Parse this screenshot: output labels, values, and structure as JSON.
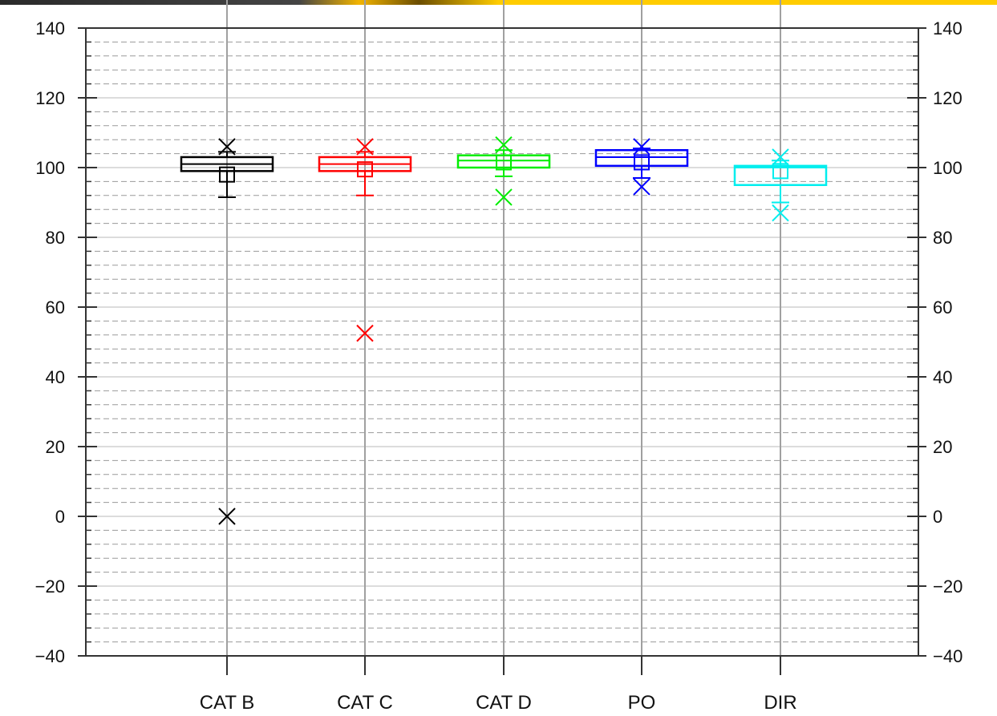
{
  "chart_data": {
    "type": "box",
    "y_axis": {
      "ylim": [
        -40,
        140
      ],
      "major_ticks": [
        -40,
        -20,
        0,
        20,
        40,
        60,
        80,
        100,
        120,
        140
      ],
      "major_tick_labels": [
        "−40",
        "−20",
        "0",
        "20",
        "40",
        "60",
        "80",
        "100",
        "120",
        "140"
      ],
      "minor_step": 4,
      "labels_both_sides": true
    },
    "grid": {
      "major_solid": true,
      "minor_dashed": true,
      "category_vertical_lines": true
    },
    "categories": [
      "CAT B",
      "CAT C",
      "CAT D",
      "PO",
      "DIR"
    ],
    "series": [
      {
        "category": "CAT B",
        "color": "#000000",
        "whisker_low": 91.5,
        "q1": 99,
        "median": 101,
        "q3": 103,
        "whisker_high": 104.5,
        "mean": 98,
        "outliers": [
          106,
          0
        ]
      },
      {
        "category": "CAT C",
        "color": "#ff0000",
        "whisker_low": 92,
        "q1": 99,
        "median": 101,
        "q3": 103,
        "whisker_high": 104.5,
        "mean": 99.5,
        "outliers": [
          106,
          52.5
        ]
      },
      {
        "category": "CAT D",
        "color": "#00ee00",
        "whisker_low": 97.5,
        "q1": 100,
        "median": 102,
        "q3": 103.5,
        "whisker_high": 105,
        "mean": 101.5,
        "outliers": [
          106.5,
          91.5
        ]
      },
      {
        "category": "PO",
        "color": "#0000ff",
        "whisker_low": 97,
        "q1": 100.5,
        "median": 103,
        "q3": 105,
        "whisker_high": 105.5,
        "mean": 101.5,
        "outliers": [
          106,
          94.5
        ]
      },
      {
        "category": "DIR",
        "color": "#00eeee",
        "whisker_low": 90,
        "q1": 95,
        "median": 100,
        "q3": 100.5,
        "whisker_high": 102,
        "mean": 99,
        "outliers": [
          103,
          87
        ]
      }
    ]
  }
}
